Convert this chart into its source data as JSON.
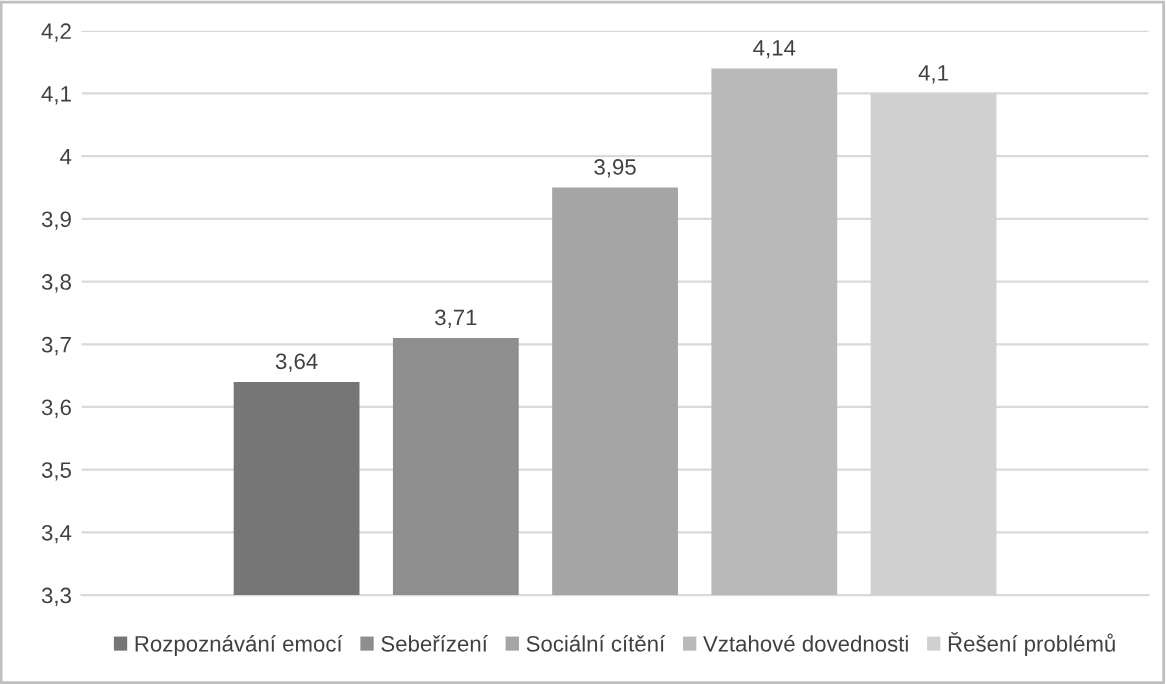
{
  "chart_data": {
    "type": "bar",
    "categories": [
      null
    ],
    "series": [
      {
        "name": "Rozpoznávání emocí",
        "color": "#767676",
        "values": [
          3.64
        ],
        "value_labels": [
          "3,64"
        ]
      },
      {
        "name": "Sebeřízení",
        "color": "#8e8e8e",
        "values": [
          3.71
        ],
        "value_labels": [
          "3,71"
        ]
      },
      {
        "name": "Sociální cítění",
        "color": "#a5a5a5",
        "values": [
          3.95
        ],
        "value_labels": [
          "3,95"
        ]
      },
      {
        "name": "Vztahové dovednosti",
        "color": "#b9b9b9",
        "values": [
          4.14
        ],
        "value_labels": [
          "4,14"
        ]
      },
      {
        "name": "Řešení problémů",
        "color": "#d0d0d0",
        "values": [
          4.1
        ],
        "value_labels": [
          "4,1"
        ]
      }
    ],
    "ylim": [
      3.3,
      4.2
    ],
    "yticks": [
      {
        "value": 3.3,
        "label": "3,3"
      },
      {
        "value": 3.4,
        "label": "3,4"
      },
      {
        "value": 3.5,
        "label": "3,5"
      },
      {
        "value": 3.6,
        "label": "3,6"
      },
      {
        "value": 3.7,
        "label": "3,7"
      },
      {
        "value": 3.8,
        "label": "3,8"
      },
      {
        "value": 3.9,
        "label": "3,9"
      },
      {
        "value": 4.0,
        "label": "4"
      },
      {
        "value": 4.1,
        "label": "4,1"
      },
      {
        "value": 4.2,
        "label": "4,2"
      }
    ],
    "grid": "y",
    "legend": "bottom"
  }
}
